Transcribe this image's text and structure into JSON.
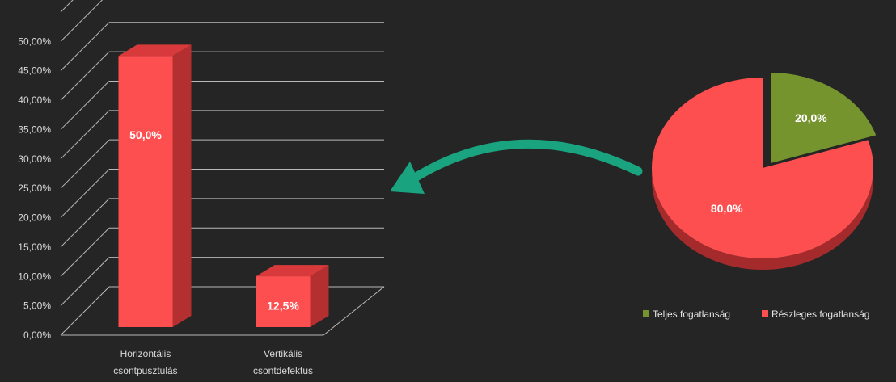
{
  "chart_data": [
    {
      "type": "bar",
      "categories": [
        [
          "Horizontális",
          "csontpusztulás"
        ],
        [
          "Vertikális",
          "csontdefektus"
        ]
      ],
      "values": [
        50.0,
        12.5
      ],
      "data_labels": [
        "50,0%",
        "12,5%"
      ],
      "y_ticks": [
        "0,00%",
        "5,00%",
        "10,00%",
        "15,00%",
        "20,00%",
        "25,00%",
        "30,00%",
        "35,00%",
        "40,00%",
        "45,00%",
        "50,00%"
      ],
      "ylim": [
        0,
        55
      ],
      "grid": true,
      "style": "3d",
      "colors": {
        "bar_front": "#fe4f50",
        "bar_side": "#b42f30",
        "bar_top": "#d83a3b",
        "grid": "#b9b9b9"
      }
    },
    {
      "type": "pie",
      "style": "3d-exploded",
      "slices": [
        {
          "label": "Teljes fogatlanság",
          "value": 20.0,
          "data_label": "20,0%",
          "color": "#76942e",
          "side_color": "#4b6119"
        },
        {
          "label": "Részleges fogatlanság",
          "value": 80.0,
          "data_label": "80,0%",
          "color": "#fe4f50",
          "side_color": "#a52a2b"
        }
      ],
      "legend": {
        "placement": "bottom",
        "entries": [
          "Teljes fogatlanság",
          "Részleges fogatlanság"
        ]
      }
    }
  ],
  "arrow": {
    "color": "#1aa37f",
    "direction": "pie-to-bars"
  }
}
